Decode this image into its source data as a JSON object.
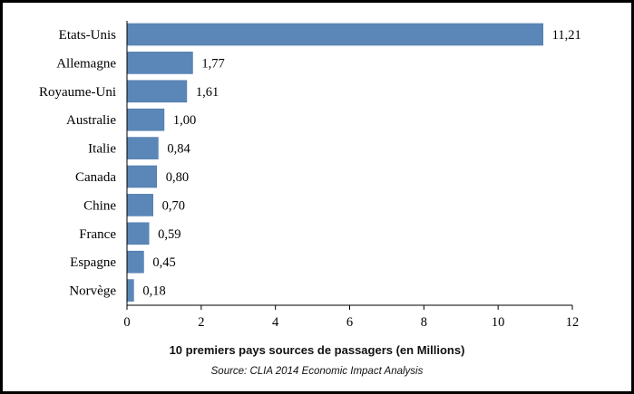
{
  "chart_data": {
    "type": "bar",
    "orientation": "horizontal",
    "categories": [
      "Etats-Unis",
      "Allemagne",
      "Royaume-Uni",
      "Australie",
      "Italie",
      "Canada",
      "Chine",
      "France",
      "Espagne",
      "Norvège"
    ],
    "values": [
      11.21,
      1.77,
      1.61,
      1.0,
      0.84,
      0.8,
      0.7,
      0.59,
      0.45,
      0.18
    ],
    "value_labels": [
      "11,21",
      "1,77",
      "1,61",
      "1,00",
      "0,84",
      "0,80",
      "0,70",
      "0,59",
      "0,45",
      "0,18"
    ],
    "xlim": [
      0,
      12
    ],
    "xticks": [
      0,
      2,
      4,
      6,
      8,
      10,
      12
    ],
    "xlabel": "10 premiers pays sources de passagers (en Millions)",
    "ylabel": "",
    "title": "",
    "source": "Source: CLIA 2014 Economic Impact Analysis",
    "grid": false,
    "bar_color": "#5b87b8"
  }
}
